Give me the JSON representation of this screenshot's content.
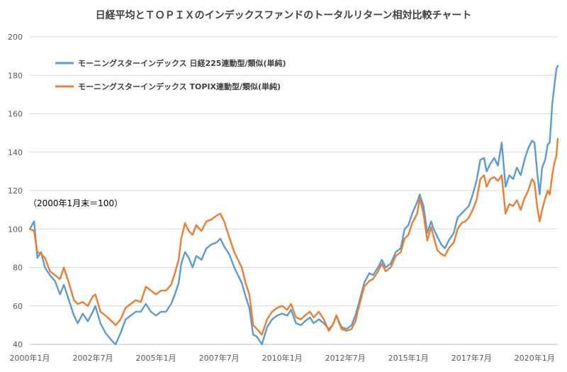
{
  "chart_data": {
    "type": "line",
    "title": "日経平均とＴＯＰＩＸのインデックスファンドのトータルリターン相対比較チャート",
    "annotation": "（2000年1月末＝100）",
    "ylim": [
      40,
      200
    ],
    "yticks": [
      40,
      60,
      80,
      100,
      120,
      140,
      160,
      180,
      200
    ],
    "xlim": [
      2000.0,
      2020.92
    ],
    "xticks": [
      {
        "label": "2000年1月",
        "t": 2000.0
      },
      {
        "label": "2002年7月",
        "t": 2002.5
      },
      {
        "label": "2005年1月",
        "t": 2005.0
      },
      {
        "label": "2007年7月",
        "t": 2007.5
      },
      {
        "label": "2010年1月",
        "t": 2010.0
      },
      {
        "label": "2012年7月",
        "t": 2012.5
      },
      {
        "label": "2015年1月",
        "t": 2015.0
      },
      {
        "label": "2017年7月",
        "t": 2017.5
      },
      {
        "label": "2020年1月",
        "t": 2020.0
      }
    ],
    "legend_position": "top-left",
    "grid": true,
    "series": [
      {
        "name": "モーニングスターインデックス 日経225連動型/類似(単純)",
        "color": "#5b9bd5",
        "points": [
          [
            2000.0,
            100
          ],
          [
            2000.17,
            104
          ],
          [
            2000.3,
            85
          ],
          [
            2000.45,
            88
          ],
          [
            2000.6,
            80
          ],
          [
            2000.8,
            76
          ],
          [
            2001.0,
            73
          ],
          [
            2001.2,
            66
          ],
          [
            2001.35,
            71
          ],
          [
            2001.55,
            63
          ],
          [
            2001.75,
            55
          ],
          [
            2001.9,
            51
          ],
          [
            2002.1,
            56
          ],
          [
            2002.3,
            52
          ],
          [
            2002.5,
            57
          ],
          [
            2002.6,
            60
          ],
          [
            2002.8,
            51
          ],
          [
            2003.0,
            46
          ],
          [
            2003.25,
            42
          ],
          [
            2003.4,
            40
          ],
          [
            2003.6,
            46
          ],
          [
            2003.8,
            53
          ],
          [
            2004.0,
            55
          ],
          [
            2004.2,
            57
          ],
          [
            2004.4,
            57
          ],
          [
            2004.6,
            61
          ],
          [
            2004.8,
            57
          ],
          [
            2005.0,
            55
          ],
          [
            2005.2,
            57
          ],
          [
            2005.4,
            57
          ],
          [
            2005.6,
            61
          ],
          [
            2005.75,
            66
          ],
          [
            2005.9,
            72
          ],
          [
            2006.0,
            82
          ],
          [
            2006.15,
            88
          ],
          [
            2006.3,
            85
          ],
          [
            2006.45,
            80
          ],
          [
            2006.6,
            86
          ],
          [
            2006.8,
            84
          ],
          [
            2007.0,
            90
          ],
          [
            2007.2,
            92
          ],
          [
            2007.4,
            93
          ],
          [
            2007.55,
            95
          ],
          [
            2007.7,
            91
          ],
          [
            2007.9,
            87
          ],
          [
            2008.1,
            80
          ],
          [
            2008.25,
            76
          ],
          [
            2008.4,
            72
          ],
          [
            2008.55,
            65
          ],
          [
            2008.7,
            59
          ],
          [
            2008.85,
            45
          ],
          [
            2009.0,
            44
          ],
          [
            2009.2,
            40
          ],
          [
            2009.4,
            49
          ],
          [
            2009.6,
            53
          ],
          [
            2009.8,
            55
          ],
          [
            2010.0,
            56
          ],
          [
            2010.2,
            55
          ],
          [
            2010.35,
            58
          ],
          [
            2010.55,
            51
          ],
          [
            2010.75,
            50
          ],
          [
            2010.9,
            52
          ],
          [
            2011.1,
            54
          ],
          [
            2011.25,
            51
          ],
          [
            2011.45,
            53
          ],
          [
            2011.65,
            51
          ],
          [
            2011.85,
            48
          ],
          [
            2012.0,
            50
          ],
          [
            2012.15,
            55
          ],
          [
            2012.35,
            49
          ],
          [
            2012.55,
            48
          ],
          [
            2012.75,
            50
          ],
          [
            2012.9,
            55
          ],
          [
            2013.05,
            62
          ],
          [
            2013.25,
            72
          ],
          [
            2013.45,
            77
          ],
          [
            2013.6,
            76
          ],
          [
            2013.8,
            80
          ],
          [
            2013.95,
            84
          ],
          [
            2014.1,
            80
          ],
          [
            2014.3,
            82
          ],
          [
            2014.5,
            88
          ],
          [
            2014.7,
            90
          ],
          [
            2014.85,
            100
          ],
          [
            2015.0,
            102
          ],
          [
            2015.15,
            108
          ],
          [
            2015.35,
            114
          ],
          [
            2015.45,
            118
          ],
          [
            2015.6,
            112
          ],
          [
            2015.75,
            98
          ],
          [
            2015.9,
            104
          ],
          [
            2016.0,
            100
          ],
          [
            2016.15,
            96
          ],
          [
            2016.3,
            92
          ],
          [
            2016.45,
            90
          ],
          [
            2016.6,
            94
          ],
          [
            2016.8,
            98
          ],
          [
            2016.95,
            106
          ],
          [
            2017.1,
            108
          ],
          [
            2017.25,
            110
          ],
          [
            2017.4,
            112
          ],
          [
            2017.55,
            118
          ],
          [
            2017.7,
            125
          ],
          [
            2017.85,
            136
          ],
          [
            2018.0,
            137
          ],
          [
            2018.1,
            130
          ],
          [
            2018.25,
            134
          ],
          [
            2018.4,
            137
          ],
          [
            2018.55,
            133
          ],
          [
            2018.7,
            145
          ],
          [
            2018.85,
            122
          ],
          [
            2019.0,
            128
          ],
          [
            2019.15,
            126
          ],
          [
            2019.3,
            132
          ],
          [
            2019.45,
            128
          ],
          [
            2019.6,
            136
          ],
          [
            2019.75,
            142
          ],
          [
            2019.9,
            146
          ],
          [
            2020.0,
            145
          ],
          [
            2020.1,
            130
          ],
          [
            2020.2,
            118
          ],
          [
            2020.3,
            132
          ],
          [
            2020.42,
            136
          ],
          [
            2020.52,
            144
          ],
          [
            2020.6,
            145
          ],
          [
            2020.7,
            165
          ],
          [
            2020.78,
            174
          ],
          [
            2020.86,
            183
          ],
          [
            2020.92,
            185
          ]
        ]
      },
      {
        "name": "モーニングスターインデックス TOPIX連動型/類似(単純)",
        "color": "#ed7d31",
        "points": [
          [
            2000.0,
            100
          ],
          [
            2000.17,
            99
          ],
          [
            2000.3,
            88
          ],
          [
            2000.45,
            87
          ],
          [
            2000.6,
            85
          ],
          [
            2000.8,
            78
          ],
          [
            2001.0,
            76
          ],
          [
            2001.2,
            74
          ],
          [
            2001.35,
            80
          ],
          [
            2001.55,
            72
          ],
          [
            2001.75,
            63
          ],
          [
            2001.9,
            61
          ],
          [
            2002.1,
            62
          ],
          [
            2002.3,
            60
          ],
          [
            2002.5,
            65
          ],
          [
            2002.6,
            66
          ],
          [
            2002.8,
            57
          ],
          [
            2003.0,
            55
          ],
          [
            2003.25,
            52
          ],
          [
            2003.4,
            50
          ],
          [
            2003.6,
            53
          ],
          [
            2003.8,
            59
          ],
          [
            2004.0,
            61
          ],
          [
            2004.2,
            63
          ],
          [
            2004.4,
            62
          ],
          [
            2004.6,
            70
          ],
          [
            2004.8,
            68
          ],
          [
            2005.0,
            66
          ],
          [
            2005.2,
            68
          ],
          [
            2005.4,
            68
          ],
          [
            2005.6,
            71
          ],
          [
            2005.75,
            77
          ],
          [
            2005.9,
            84
          ],
          [
            2006.0,
            95
          ],
          [
            2006.15,
            103
          ],
          [
            2006.3,
            99
          ],
          [
            2006.45,
            97
          ],
          [
            2006.6,
            102
          ],
          [
            2006.8,
            99
          ],
          [
            2007.0,
            104
          ],
          [
            2007.2,
            105
          ],
          [
            2007.4,
            107
          ],
          [
            2007.55,
            108
          ],
          [
            2007.7,
            104
          ],
          [
            2007.9,
            96
          ],
          [
            2008.1,
            88
          ],
          [
            2008.25,
            84
          ],
          [
            2008.4,
            80
          ],
          [
            2008.55,
            72
          ],
          [
            2008.7,
            66
          ],
          [
            2008.85,
            50
          ],
          [
            2009.0,
            48
          ],
          [
            2009.2,
            45
          ],
          [
            2009.4,
            53
          ],
          [
            2009.6,
            57
          ],
          [
            2009.8,
            59
          ],
          [
            2010.0,
            60
          ],
          [
            2010.2,
            58
          ],
          [
            2010.35,
            61
          ],
          [
            2010.55,
            54
          ],
          [
            2010.75,
            53
          ],
          [
            2010.9,
            55
          ],
          [
            2011.1,
            57
          ],
          [
            2011.25,
            54
          ],
          [
            2011.45,
            57
          ],
          [
            2011.65,
            53
          ],
          [
            2011.85,
            47
          ],
          [
            2012.0,
            50
          ],
          [
            2012.15,
            55
          ],
          [
            2012.35,
            48
          ],
          [
            2012.55,
            47
          ],
          [
            2012.75,
            48
          ],
          [
            2012.9,
            52
          ],
          [
            2013.05,
            60
          ],
          [
            2013.25,
            70
          ],
          [
            2013.45,
            73
          ],
          [
            2013.6,
            74
          ],
          [
            2013.8,
            78
          ],
          [
            2013.95,
            82
          ],
          [
            2014.1,
            78
          ],
          [
            2014.3,
            80
          ],
          [
            2014.5,
            86
          ],
          [
            2014.7,
            88
          ],
          [
            2014.85,
            95
          ],
          [
            2015.0,
            97
          ],
          [
            2015.15,
            103
          ],
          [
            2015.35,
            108
          ],
          [
            2015.45,
            116
          ],
          [
            2015.6,
            108
          ],
          [
            2015.75,
            94
          ],
          [
            2015.9,
            101
          ],
          [
            2016.0,
            96
          ],
          [
            2016.15,
            89
          ],
          [
            2016.3,
            87
          ],
          [
            2016.45,
            86
          ],
          [
            2016.6,
            90
          ],
          [
            2016.8,
            93
          ],
          [
            2016.95,
            100
          ],
          [
            2017.1,
            103
          ],
          [
            2017.25,
            104
          ],
          [
            2017.4,
            106
          ],
          [
            2017.55,
            110
          ],
          [
            2017.7,
            115
          ],
          [
            2017.85,
            126
          ],
          [
            2018.0,
            128
          ],
          [
            2018.1,
            122
          ],
          [
            2018.25,
            126
          ],
          [
            2018.4,
            127
          ],
          [
            2018.55,
            125
          ],
          [
            2018.7,
            128
          ],
          [
            2018.85,
            108
          ],
          [
            2019.0,
            113
          ],
          [
            2019.15,
            112
          ],
          [
            2019.3,
            115
          ],
          [
            2019.45,
            110
          ],
          [
            2019.6,
            116
          ],
          [
            2019.75,
            120
          ],
          [
            2019.9,
            126
          ],
          [
            2020.0,
            124
          ],
          [
            2020.1,
            112
          ],
          [
            2020.2,
            104
          ],
          [
            2020.3,
            110
          ],
          [
            2020.42,
            116
          ],
          [
            2020.52,
            120
          ],
          [
            2020.6,
            118
          ],
          [
            2020.7,
            128
          ],
          [
            2020.78,
            134
          ],
          [
            2020.86,
            138
          ],
          [
            2020.92,
            147
          ]
        ]
      }
    ]
  }
}
